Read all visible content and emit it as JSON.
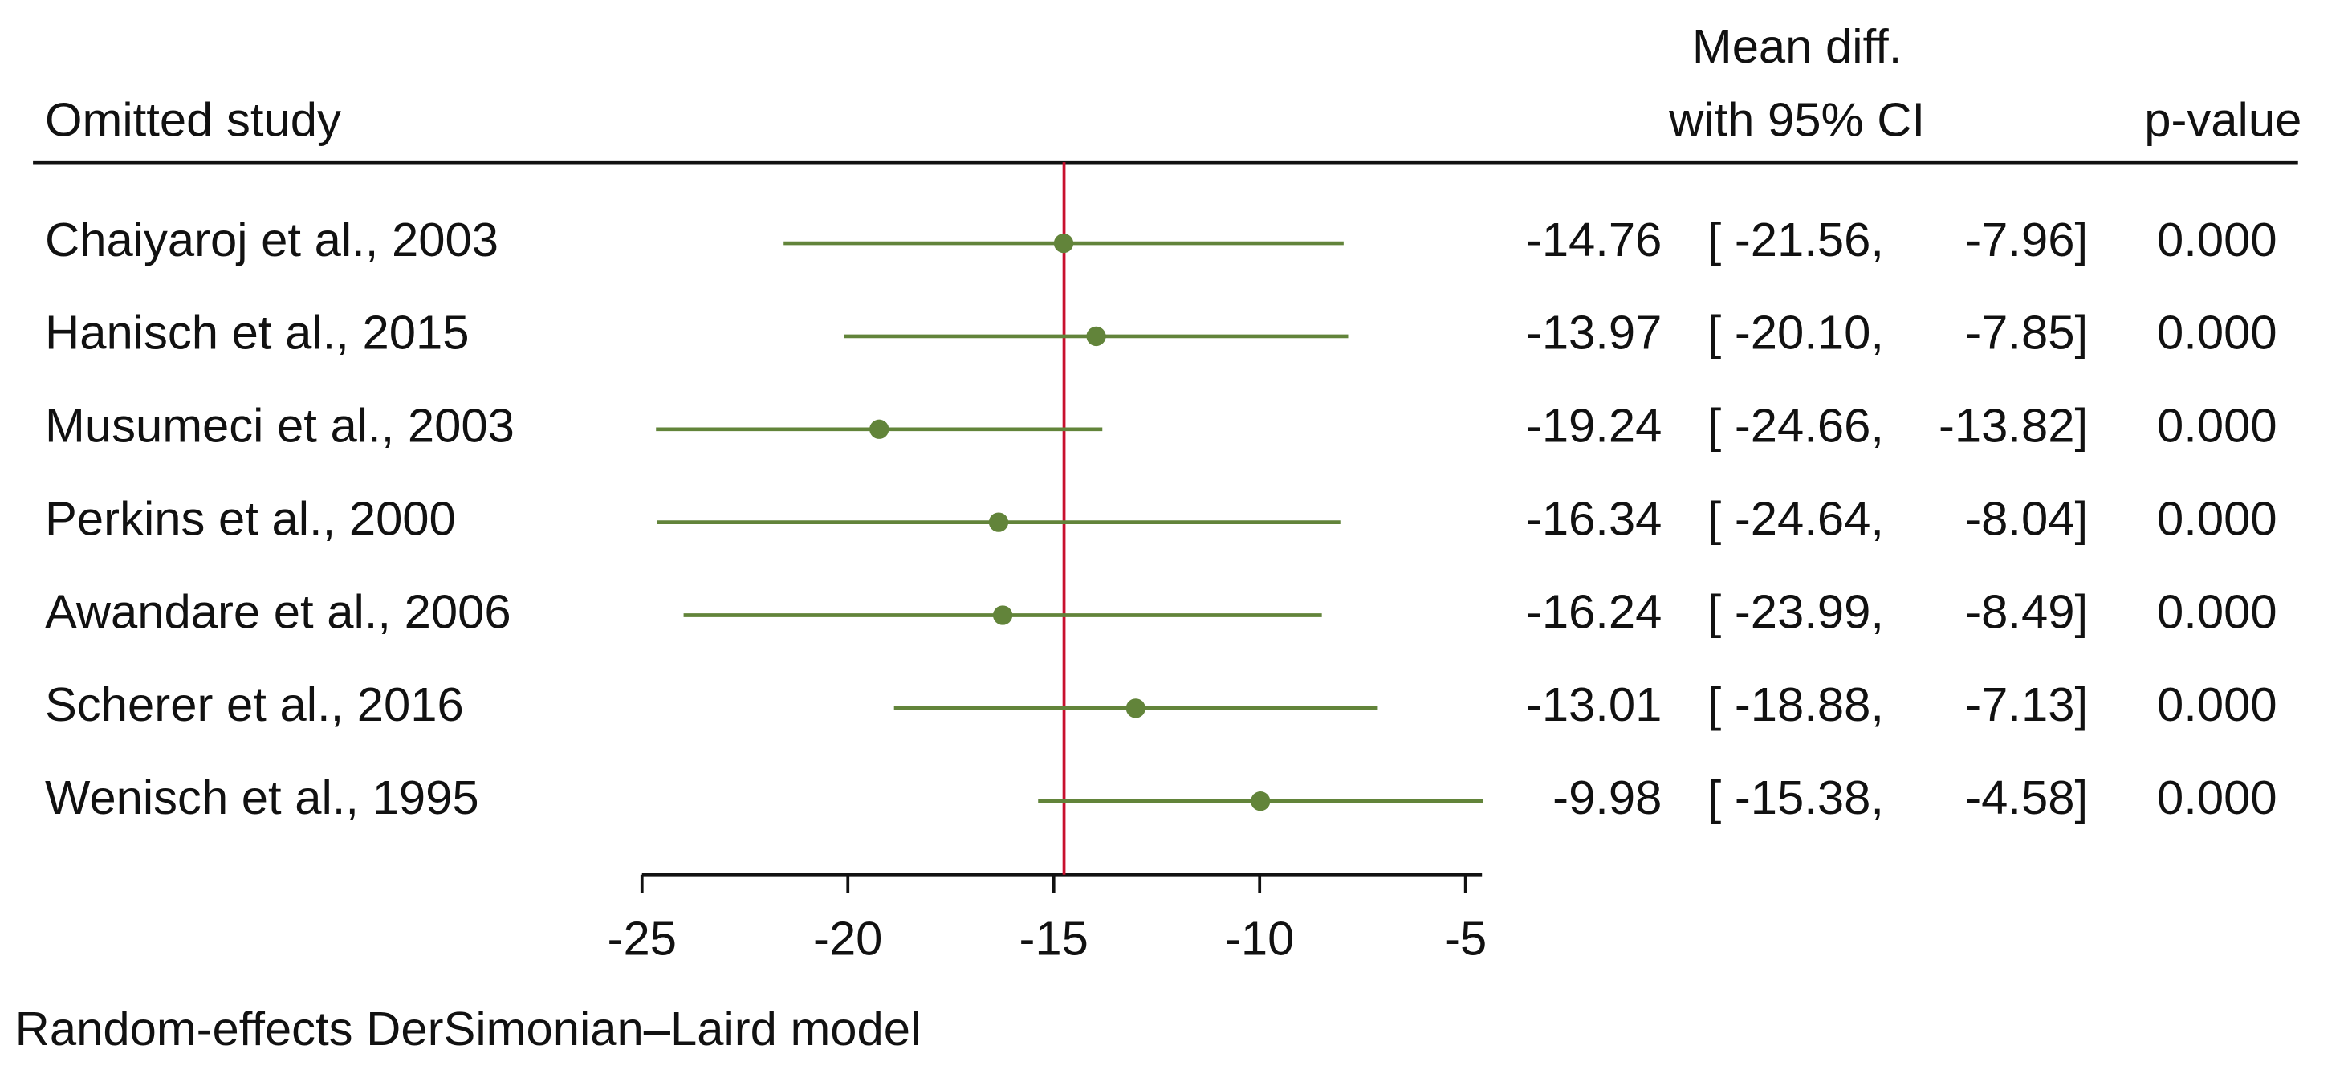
{
  "chart_data": {
    "type": "forest",
    "header_study": "Omitted study",
    "header_effect_1": "Mean diff.",
    "header_effect_2": "with 95% CI",
    "header_p": "p-value",
    "note": "Random-effects DerSimonian–Laird model",
    "categories": [
      "Chaiyaroj et al., 2003",
      "Hanisch et al., 2015",
      "Musumeci et al., 2003",
      "Perkins et al., 2000",
      "Awandare et al., 2006",
      "Scherer et al., 2016",
      "Wenisch et al., 1995"
    ],
    "values": [
      -14.76,
      -13.97,
      -19.24,
      -16.34,
      -16.24,
      -13.01,
      -9.98
    ],
    "ci_lower": [
      -21.56,
      -20.1,
      -24.66,
      -24.64,
      -23.99,
      -18.88,
      -15.38
    ],
    "ci_upper": [
      -7.96,
      -7.85,
      -13.82,
      -8.04,
      -8.49,
      -7.13,
      -4.58
    ],
    "ci_lower_labels": [
      "[ -21.56,",
      "[ -20.10,",
      "[ -24.66,",
      "[ -24.64,",
      "[ -23.99,",
      "[ -18.88,",
      "[ -15.38,"
    ],
    "ci_upper_labels": [
      "-7.96]",
      "-7.85]",
      "-13.82]",
      "-8.04]",
      "-8.49]",
      "-7.13]",
      "-4.58]"
    ],
    "p_values": [
      0,
      0,
      0,
      0,
      0,
      0,
      0
    ],
    "p_value_labels": [
      "0.000",
      "0.000",
      "0.000",
      "0.000",
      "0.000",
      "0.000",
      "0.000"
    ],
    "reference_line": -14.75,
    "reference_color": "#c8102e",
    "color": "#62843a",
    "xlim": [
      -25,
      -4.6
    ],
    "xticks": [
      -25,
      -20,
      -15,
      -10,
      -5
    ]
  }
}
